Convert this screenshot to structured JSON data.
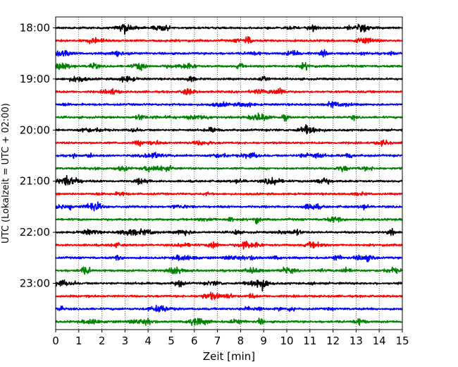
{
  "chart_data": {
    "type": "line",
    "xlabel": "Zeit  [min]",
    "ylabel": "UTC (Lokalzeit = UTC + 02:00)",
    "xlim": [
      0,
      15
    ],
    "xticks": [
      0,
      1,
      2,
      3,
      4,
      5,
      6,
      7,
      8,
      9,
      10,
      11,
      12,
      13,
      14,
      15
    ],
    "xgrid": "dotted vertical",
    "yticks": [
      {
        "label": "18:00",
        "trace": 0
      },
      {
        "label": "19:00",
        "trace": 4
      },
      {
        "label": "20:00",
        "trace": 8
      },
      {
        "label": "21:00",
        "trace": 12
      },
      {
        "label": "22:00",
        "trace": 16
      },
      {
        "label": "23:00",
        "trace": 20
      }
    ],
    "trace_colors": [
      "#000000",
      "#ff0000",
      "#0000ff",
      "#008000"
    ],
    "trace_count": 24,
    "trace_interval_min": 15,
    "traces": [
      {
        "start": "18:00",
        "color": "#000000"
      },
      {
        "start": "18:15",
        "color": "#ff0000"
      },
      {
        "start": "18:30",
        "color": "#0000ff"
      },
      {
        "start": "18:45",
        "color": "#008000"
      },
      {
        "start": "19:00",
        "color": "#000000"
      },
      {
        "start": "19:15",
        "color": "#ff0000"
      },
      {
        "start": "19:30",
        "color": "#0000ff"
      },
      {
        "start": "19:45",
        "color": "#008000"
      },
      {
        "start": "20:00",
        "color": "#000000"
      },
      {
        "start": "20:15",
        "color": "#ff0000"
      },
      {
        "start": "20:30",
        "color": "#0000ff"
      },
      {
        "start": "20:45",
        "color": "#008000"
      },
      {
        "start": "21:00",
        "color": "#000000"
      },
      {
        "start": "21:15",
        "color": "#ff0000"
      },
      {
        "start": "21:30",
        "color": "#0000ff"
      },
      {
        "start": "21:45",
        "color": "#008000"
      },
      {
        "start": "22:00",
        "color": "#000000"
      },
      {
        "start": "22:15",
        "color": "#ff0000"
      },
      {
        "start": "22:30",
        "color": "#0000ff"
      },
      {
        "start": "22:45",
        "color": "#008000"
      },
      {
        "start": "23:00",
        "color": "#000000"
      },
      {
        "start": "23:15",
        "color": "#ff0000"
      },
      {
        "start": "23:30",
        "color": "#0000ff"
      },
      {
        "start": "23:45",
        "color": "#008000"
      }
    ]
  }
}
